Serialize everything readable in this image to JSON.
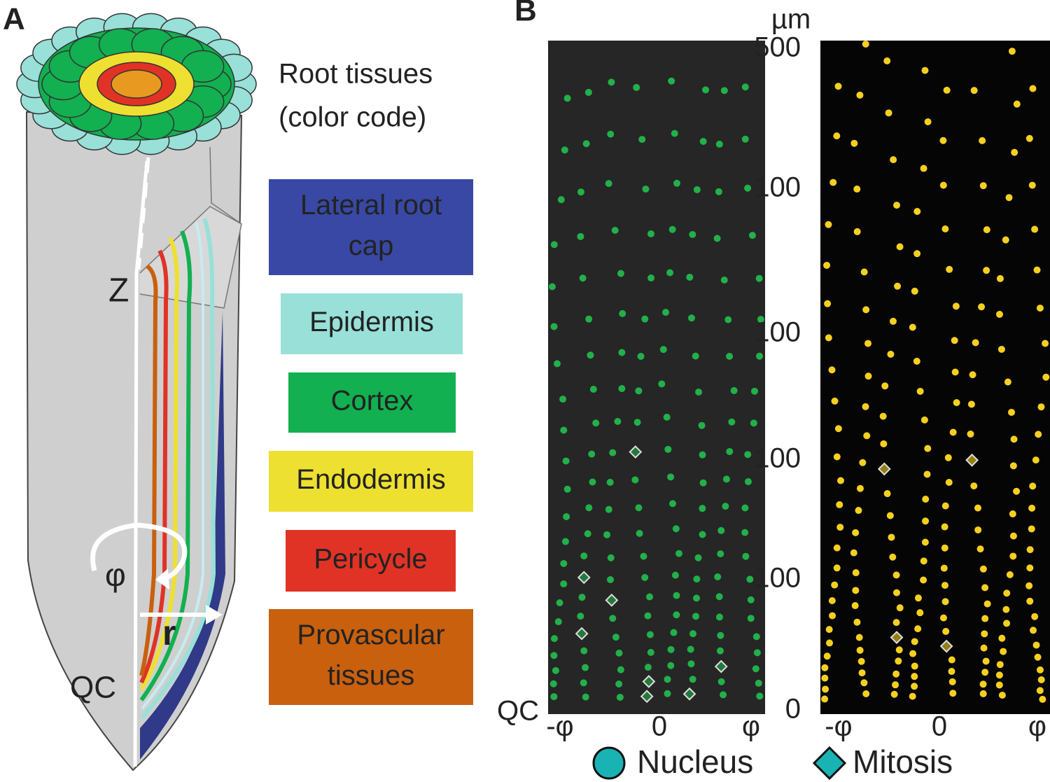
{
  "panel_a": {
    "label": "A",
    "title": [
      "Root tissues",
      "(color code)"
    ],
    "tissues": [
      {
        "name": [
          "Lateral root",
          "cap"
        ],
        "color": "#3848a4"
      },
      {
        "name": [
          "Epidermis"
        ],
        "color": "#98e0d8"
      },
      {
        "name": [
          "Cortex"
        ],
        "color": "#12b050"
      },
      {
        "name": [
          "Endodermis"
        ],
        "color": "#eee030"
      },
      {
        "name": [
          "Pericycle"
        ],
        "color": "#e03325"
      },
      {
        "name": [
          "Provascular",
          "tissues"
        ],
        "color": "#c8600e"
      }
    ],
    "axis_labels": {
      "z": "Z",
      "phi": "φ",
      "r": "r",
      "qc": "QC"
    }
  },
  "panel_b": {
    "label": "B",
    "unit": "µm",
    "y_labels": [
      "500",
      "100",
      "100",
      "100",
      "100",
      "0"
    ],
    "qc": "QC",
    "x_labels": [
      "-φ",
      "0",
      "φ"
    ],
    "legend": [
      {
        "name": "Nucleus",
        "color": "#1ab3b3"
      },
      {
        "name": "Mitosis",
        "color": "#1ab3b3"
      }
    ],
    "nucleus_colors": [
      "#22b04a",
      "#f5d020"
    ]
  }
}
